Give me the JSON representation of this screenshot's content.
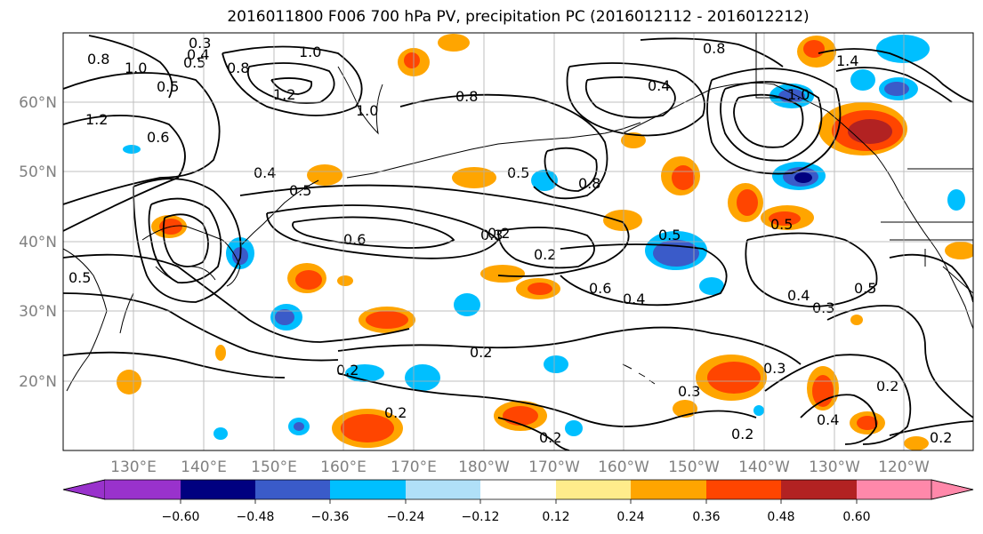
{
  "title": "2016011800 F006 700 hPa PV, precipitation PC (2016012112 - 2016012212)",
  "lat_labels": [
    "60°N",
    "50°N",
    "40°N",
    "30°N",
    "20°N"
  ],
  "lon_labels": [
    "130°E",
    "140°E",
    "150°E",
    "160°E",
    "170°E",
    "180°W",
    "170°W",
    "160°W",
    "150°W",
    "140°W",
    "130°W",
    "120°W"
  ],
  "colorbar": {
    "tick_labels": [
      "−0.60",
      "−0.48",
      "−0.36",
      "−0.24",
      "−0.12",
      "0.12",
      "0.24",
      "0.36",
      "0.48",
      "0.60"
    ],
    "colors": [
      "#9932CC",
      "#000080",
      "#3A5BC9",
      "#00BFFF",
      "#B0E0F8",
      "#FFFFFF",
      "#FFEC8B",
      "#FFA500",
      "#FF4500",
      "#B22222",
      "#FF88AA"
    ]
  },
  "contour_labels": [
    "0.3",
    "0.8",
    "0.4",
    "0.5",
    "1.0",
    "0.8",
    "0.5",
    "1.2",
    "1.0",
    "0.8",
    "1.0",
    "0.8",
    "1.4",
    "0.8",
    "0.4",
    "0.5",
    "1.0",
    "0.4",
    "0.5",
    "0.5",
    "0.6",
    "0.3",
    "0.2",
    "0.5",
    "0.5",
    "0.6",
    "0.4",
    "0.4",
    "0.3",
    "0.5",
    "0.2",
    "0.2",
    "0.2",
    "0.2",
    "0.3",
    "0.3",
    "0.4",
    "0.2",
    "0.2",
    "0.2",
    "1.2",
    "0.6",
    "0.2"
  ]
}
